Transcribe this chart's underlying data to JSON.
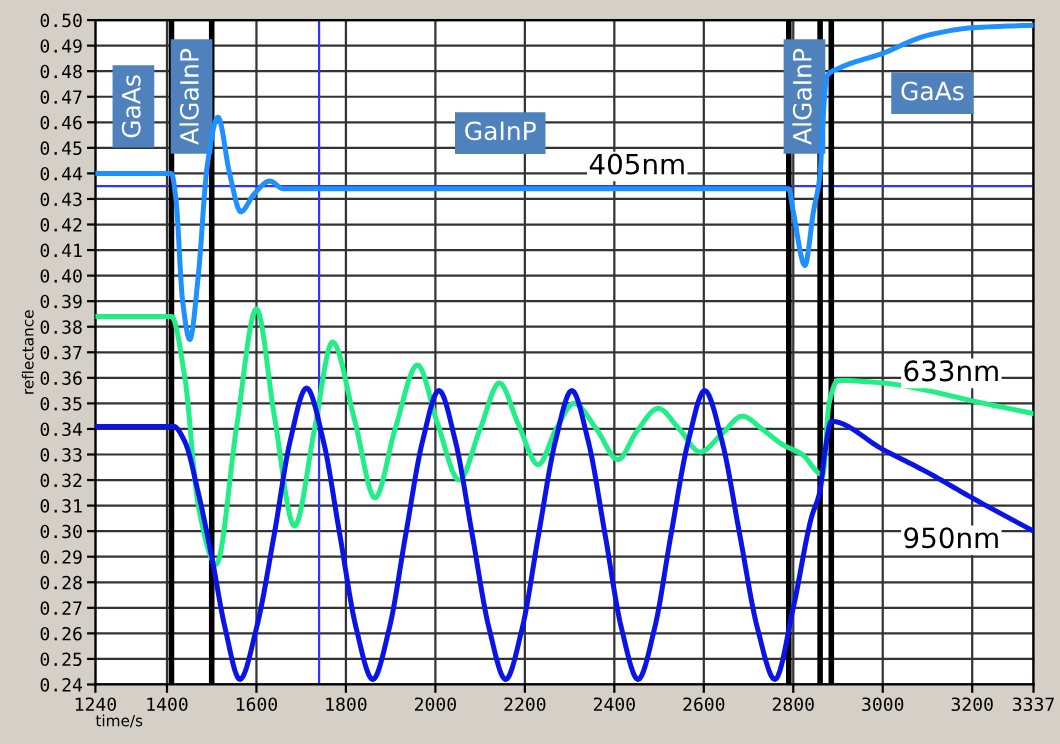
{
  "chart_data": {
    "type": "line",
    "xlabel": "time/s",
    "ylabel": "reflectance",
    "xlim": [
      1240,
      3337
    ],
    "ylim": [
      0.24,
      0.5
    ],
    "xticks": [
      1240,
      1400,
      1600,
      1800,
      2000,
      2200,
      2400,
      2600,
      2800,
      3000,
      3200,
      3337
    ],
    "yticks": [
      {
        "value": 0.24,
        "label": "0.24"
      },
      {
        "value": 0.25,
        "label": "0.25"
      },
      {
        "value": 0.26,
        "label": "0.26"
      },
      {
        "value": 0.27,
        "label": "0.27"
      },
      {
        "value": 0.28,
        "label": "0.28"
      },
      {
        "value": 0.29,
        "label": "0.29"
      },
      {
        "value": 0.3,
        "label": "0.30"
      },
      {
        "value": 0.31,
        "label": "0.31"
      },
      {
        "value": 0.32,
        "label": "0.32"
      },
      {
        "value": 0.33,
        "label": "0.33"
      },
      {
        "value": 0.34,
        "label": "0.34"
      },
      {
        "value": 0.35,
        "label": "0.35"
      },
      {
        "value": 0.36,
        "label": "0.36"
      },
      {
        "value": 0.37,
        "label": "0.37"
      },
      {
        "value": 0.38,
        "label": "0.38"
      },
      {
        "value": 0.39,
        "label": "0.39"
      },
      {
        "value": 0.4,
        "label": "0.40"
      },
      {
        "value": 0.41,
        "label": "0.41"
      },
      {
        "value": 0.42,
        "label": "0.42"
      },
      {
        "value": 0.43,
        "label": "0.43"
      },
      {
        "value": 0.44,
        "label": "0.44"
      },
      {
        "value": 0.45,
        "label": "0.45"
      },
      {
        "value": 0.46,
        "label": "0.46"
      },
      {
        "value": 0.47,
        "label": "0.47"
      },
      {
        "value": 0.48,
        "label": "0.48"
      },
      {
        "value": 0.49,
        "label": "0.49"
      },
      {
        "value": 0.5,
        "label": "0.50"
      }
    ],
    "grid": true,
    "marker": "none",
    "line_style": "solid",
    "series": [
      {
        "name": "405nm",
        "color": "#1e90ff",
        "x": [
          1240,
          1410,
          1420,
          1435,
          1451,
          1470,
          1490,
          1514,
          1540,
          1565,
          1595,
          1630,
          1660,
          1740,
          2790,
          2800,
          2826,
          2845,
          2860,
          2866,
          2875,
          2900,
          3000,
          3100,
          3200,
          3337
        ],
        "values": [
          0.44,
          0.44,
          0.43,
          0.39,
          0.375,
          0.4,
          0.443,
          0.462,
          0.44,
          0.425,
          0.432,
          0.437,
          0.434,
          0.434,
          0.434,
          0.425,
          0.404,
          0.425,
          0.44,
          0.46,
          0.478,
          0.481,
          0.487,
          0.494,
          0.497,
          0.498
        ]
      },
      {
        "name": "633nm",
        "color": "#22ee88",
        "x": [
          1240,
          1410,
          1440,
          1470,
          1510,
          1555,
          1600,
          1640,
          1685,
          1730,
          1770,
          1820,
          1865,
          1910,
          1960,
          2005,
          2053,
          2100,
          2143,
          2185,
          2230,
          2270,
          2310,
          2360,
          2408,
          2450,
          2498,
          2545,
          2592,
          2640,
          2686,
          2730,
          2775,
          2820,
          2866,
          2880,
          2900,
          3000,
          3100,
          3200,
          3337
        ],
        "values": [
          0.384,
          0.384,
          0.36,
          0.31,
          0.287,
          0.34,
          0.387,
          0.345,
          0.302,
          0.34,
          0.374,
          0.343,
          0.313,
          0.34,
          0.365,
          0.342,
          0.32,
          0.34,
          0.358,
          0.342,
          0.326,
          0.34,
          0.35,
          0.34,
          0.328,
          0.339,
          0.348,
          0.34,
          0.331,
          0.338,
          0.345,
          0.34,
          0.334,
          0.33,
          0.322,
          0.35,
          0.359,
          0.358,
          0.355,
          0.351,
          0.346
        ]
      },
      {
        "name": "950nm",
        "color": "#0a14e6",
        "x": [
          1240,
          1415,
          1440,
          1470,
          1500,
          1530,
          1563,
          1600,
          1640,
          1675,
          1712,
          1750,
          1786,
          1823,
          1860,
          1897,
          1934,
          1971,
          2008,
          2045,
          2082,
          2120,
          2157,
          2194,
          2231,
          2268,
          2305,
          2342,
          2379,
          2416,
          2453,
          2490,
          2527,
          2565,
          2602,
          2641,
          2680,
          2720,
          2759,
          2800,
          2840,
          2860,
          2870,
          2885,
          3000,
          3100,
          3200,
          3337
        ],
        "values": [
          0.341,
          0.341,
          0.335,
          0.315,
          0.29,
          0.262,
          0.242,
          0.262,
          0.299,
          0.335,
          0.356,
          0.335,
          0.299,
          0.262,
          0.242,
          0.262,
          0.299,
          0.335,
          0.355,
          0.335,
          0.299,
          0.262,
          0.242,
          0.262,
          0.299,
          0.335,
          0.355,
          0.335,
          0.299,
          0.262,
          0.242,
          0.262,
          0.299,
          0.335,
          0.355,
          0.335,
          0.299,
          0.262,
          0.242,
          0.27,
          0.305,
          0.316,
          0.33,
          0.343,
          0.332,
          0.323,
          0.313,
          0.3
        ]
      }
    ],
    "ref_lines": [
      {
        "axis": "x",
        "value": 1410,
        "color": "#000000"
      },
      {
        "axis": "x",
        "value": 1500,
        "color": "#000000"
      },
      {
        "axis": "x",
        "value": 2790,
        "color": "#000000"
      },
      {
        "axis": "x",
        "value": 2860,
        "color": "#000000"
      },
      {
        "axis": "x",
        "value": 2885,
        "color": "#000000"
      },
      {
        "axis": "x",
        "value": 1740,
        "color": "#3333ff"
      },
      {
        "axis": "y",
        "value": 0.435,
        "color": "#3333ff"
      }
    ],
    "annotations": [
      "GaAs",
      "AlGaInP",
      "GaInP",
      "AlGaInP",
      "GaAs"
    ]
  }
}
